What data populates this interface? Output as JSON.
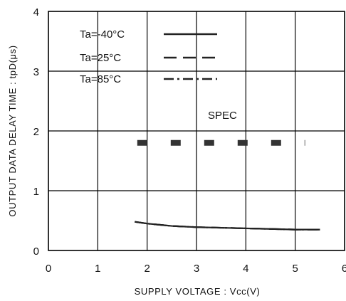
{
  "chart_data": {
    "type": "line",
    "xlabel": "SUPPLY VOLTAGE : Vcc(V)",
    "ylabel": "OUTPUT DATA DELAY TIME : tpD(μs)",
    "xlim": [
      0,
      6
    ],
    "ylim": [
      0,
      4
    ],
    "x_ticks": [
      "0",
      "1",
      "2",
      "3",
      "4",
      "5",
      "6"
    ],
    "y_ticks": [
      "0",
      "1",
      "2",
      "3",
      "4"
    ],
    "grid": true,
    "legend_position": "top-left",
    "series": [
      {
        "name": "Ta=-40°C",
        "style": "solid",
        "x": [
          1.75,
          2.0,
          2.5,
          3.0,
          3.5,
          4.0,
          4.5,
          5.0,
          5.5
        ],
        "y": [
          0.48,
          0.45,
          0.41,
          0.39,
          0.38,
          0.37,
          0.36,
          0.35,
          0.35
        ]
      },
      {
        "name": "Ta=25°C",
        "style": "dashed",
        "x": [
          1.75,
          2.0,
          2.5,
          3.0,
          3.5,
          4.0,
          4.5,
          5.0,
          5.5
        ],
        "y": [
          0.48,
          0.45,
          0.41,
          0.39,
          0.38,
          0.37,
          0.36,
          0.35,
          0.35
        ]
      },
      {
        "name": "Ta=85°C",
        "style": "dash-dot",
        "x": [
          1.75,
          2.0,
          2.5,
          3.0,
          3.5,
          4.0,
          4.5,
          5.0,
          5.5
        ],
        "y": [
          0.48,
          0.45,
          0.41,
          0.39,
          0.38,
          0.37,
          0.36,
          0.35,
          0.35
        ]
      }
    ],
    "spec": {
      "label": "SPEC",
      "y": 1.8,
      "x_range": [
        1.8,
        5.2
      ]
    },
    "colors": {
      "line": "#222222",
      "spec": "#333333",
      "grid": "#000000"
    }
  }
}
